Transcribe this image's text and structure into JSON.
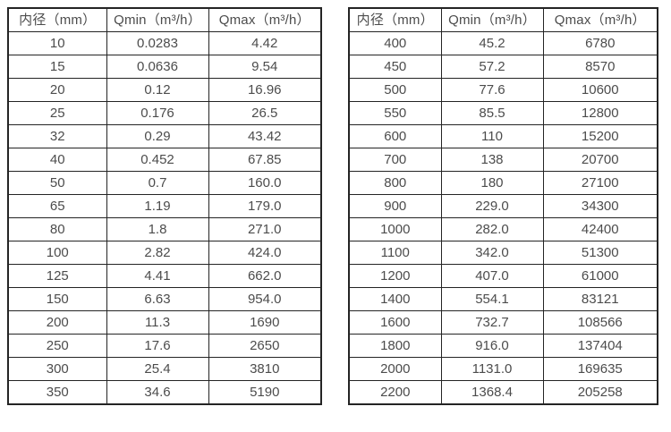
{
  "page": {
    "background_color": "#ffffff",
    "text_color": "#4c4c4c",
    "border_color": "#242424"
  },
  "tables": [
    {
      "name": "flow-table-small-diameters",
      "headers": [
        "内径（mm）",
        "Qmin（m³/h）",
        "Qmax（m³/h）"
      ],
      "rows": [
        [
          "10",
          "0.0283",
          "4.42"
        ],
        [
          "15",
          "0.0636",
          "9.54"
        ],
        [
          "20",
          "0.12",
          "16.96"
        ],
        [
          "25",
          "0.176",
          "26.5"
        ],
        [
          "32",
          "0.29",
          "43.42"
        ],
        [
          "40",
          "0.452",
          "67.85"
        ],
        [
          "50",
          "0.7",
          "160.0"
        ],
        [
          "65",
          "1.19",
          "179.0"
        ],
        [
          "80",
          "1.8",
          "271.0"
        ],
        [
          "100",
          "2.82",
          "424.0"
        ],
        [
          "125",
          "4.41",
          "662.0"
        ],
        [
          "150",
          "6.63",
          "954.0"
        ],
        [
          "200",
          "11.3",
          "1690"
        ],
        [
          "250",
          "17.6",
          "2650"
        ],
        [
          "300",
          "25.4",
          "3810"
        ],
        [
          "350",
          "34.6",
          "5190"
        ]
      ]
    },
    {
      "name": "flow-table-large-diameters",
      "headers": [
        "内径（mm）",
        "Qmin（m³/h）",
        "Qmax（m³/h）"
      ],
      "rows": [
        [
          "400",
          "45.2",
          "6780"
        ],
        [
          "450",
          "57.2",
          "8570"
        ],
        [
          "500",
          "77.6",
          "10600"
        ],
        [
          "550",
          "85.5",
          "12800"
        ],
        [
          "600",
          "110",
          "15200"
        ],
        [
          "700",
          "138",
          "20700"
        ],
        [
          "800",
          "180",
          "27100"
        ],
        [
          "900",
          "229.0",
          "34300"
        ],
        [
          "1000",
          "282.0",
          "42400"
        ],
        [
          "1100",
          "342.0",
          "51300"
        ],
        [
          "1200",
          "407.0",
          "61000"
        ],
        [
          "1400",
          "554.1",
          "83121"
        ],
        [
          "1600",
          "732.7",
          "108566"
        ],
        [
          "1800",
          "916.0",
          "137404"
        ],
        [
          "2000",
          "1131.0",
          "169635"
        ],
        [
          "2200",
          "1368.4",
          "205258"
        ]
      ]
    }
  ]
}
